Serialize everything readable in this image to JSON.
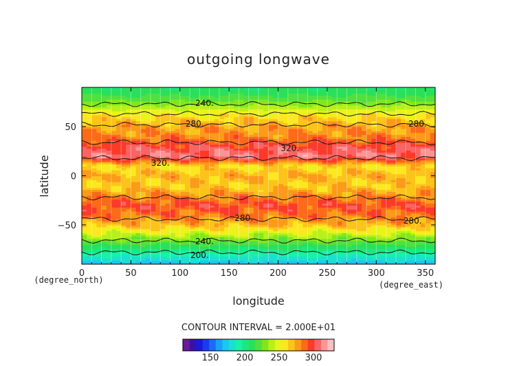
{
  "chart_data": {
    "type": "heatmap",
    "title": "outgoing longwave",
    "xlabel": "longitude",
    "ylabel": "latitude",
    "x_unit": "(degree_east)",
    "y_unit": "(degree_north)",
    "xlim": [
      0,
      360
    ],
    "ylim": [
      -90,
      90
    ],
    "x_ticks": [
      "0",
      "50",
      "100",
      "150",
      "200",
      "250",
      "300",
      "350"
    ],
    "y_ticks": [
      "50",
      "0",
      "−50"
    ],
    "contour_interval_label": "CONTOUR INTERVAL = 2.000E+01",
    "contour_labels": [
      "240.",
      "280.",
      "280.",
      "320.",
      "320.",
      "280.",
      "280.",
      "240.",
      "200."
    ],
    "colorbar": {
      "ticks": [
        "150",
        "200",
        "250",
        "300"
      ],
      "min": 110,
      "max": 330,
      "colors": [
        "#6a1a9a",
        "#3a10a8",
        "#1a1ad8",
        "#1a3cf0",
        "#1a6cf6",
        "#1aa0f6",
        "#1ac8f0",
        "#1ae0d0",
        "#1af0a8",
        "#1ae880",
        "#2ae05a",
        "#50e040",
        "#80e81a",
        "#b8f01a",
        "#e8f41a",
        "#fce820",
        "#fcc41a",
        "#fc9a1a",
        "#fc6a1a",
        "#fc3a2a",
        "#fa6464",
        "#fc9696",
        "#fdc0c0"
      ]
    },
    "zonal_profile": {
      "latitudes": [
        -90,
        -80,
        -70,
        -60,
        -50,
        -40,
        -30,
        -20,
        -10,
        0,
        10,
        20,
        30,
        40,
        50,
        60,
        70,
        80,
        90
      ],
      "olr_values": [
        170,
        190,
        215,
        240,
        270,
        285,
        295,
        280,
        265,
        272,
        260,
        310,
        300,
        282,
        275,
        262,
        238,
        218,
        205
      ]
    }
  }
}
